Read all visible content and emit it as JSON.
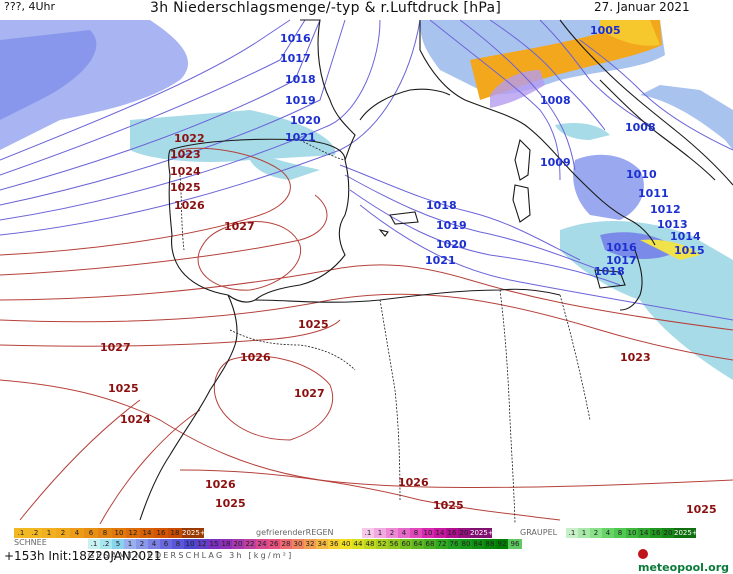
{
  "header": {
    "left": "???, 4Uhr",
    "title": "3h Niederschlagsmenge/-typ & r.Luftdruck [hPa]",
    "date": "27. Januar 2021"
  },
  "pressure_labels": [
    "1016",
    "1017",
    "1018",
    "1019",
    "1020",
    "1021",
    "1018",
    "1019",
    "1020",
    "1021",
    "1005",
    "1008",
    "1008",
    "1009",
    "1010",
    "1011",
    "1012",
    "1013",
    "1014",
    "1015",
    "1016",
    "1017",
    "1018",
    "1022",
    "1023",
    "1024",
    "1025",
    "1026",
    "1027",
    "1025",
    "1027",
    "1026",
    "1025",
    "1027",
    "1024",
    "1023",
    "1026",
    "1026",
    "1025",
    "1025",
    "1025"
  ],
  "legend": {
    "snow_title": "SCHNEE",
    "snow": [
      ".1",
      ".2",
      "1",
      "2",
      "4",
      "6",
      "8",
      "10",
      "12",
      "14",
      "16",
      "18",
      "2025+"
    ],
    "fr_title": "gefrierenderREGEN",
    "fr": [
      ".1",
      "1",
      "2",
      "4",
      "8",
      "10",
      "14",
      "16",
      "20",
      "2025+"
    ],
    "gr_title": "GRAUPEL",
    "gr": [
      ".1",
      "1",
      "2",
      "4",
      "8",
      "10",
      "14",
      "16",
      "20",
      "2025+"
    ],
    "total": [
      ".1",
      ".2",
      "5",
      "1",
      "2",
      "4",
      "6",
      "8",
      "10",
      "12",
      "15",
      "18",
      "20",
      "22",
      "24",
      "26",
      "28",
      "30",
      "32",
      "34",
      "36",
      "40",
      "44",
      "48",
      "52",
      "56",
      "60",
      "64",
      "68",
      "72",
      "76",
      "80",
      "84",
      "88",
      "92",
      "96"
    ],
    "total_title": "GESAMTNIEDERSCHLAG 3h [kg/m²]"
  },
  "footer": {
    "run": "+153h Init:18Z20JAN2021",
    "brand": "meteopool.org"
  },
  "colors": {
    "isobar_low": "#1c2fd0",
    "isobar_high": "#8b0f0f",
    "brand_green": "#0a7a3a"
  }
}
